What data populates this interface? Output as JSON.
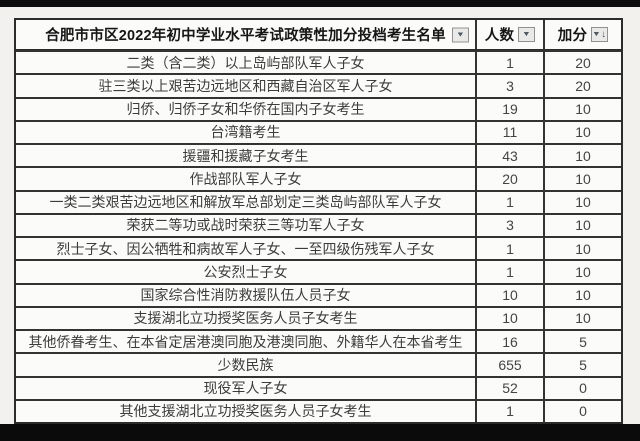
{
  "page": {
    "background_color": "#f2f1ee",
    "letterbox_color": "#0b0b0b"
  },
  "colors": {
    "table_border": "#2c2c2c",
    "header_text": "#161616",
    "cell_text": "#3c3c3c",
    "filter_button_bg": "#e9e9e8",
    "filter_button_border": "#919191",
    "filter_glyph": "#4c5a68"
  },
  "icons": {
    "dropdown_glyph": "▼",
    "sort_descending_glyph": "↓"
  },
  "table": {
    "title": "合肥市市区2022年初中学业水平考试政策性加分投档考生名单",
    "columns": {
      "count": "人数",
      "bonus": "加分"
    },
    "rows": [
      {
        "category": "二类（含二类）以上岛屿部队军人子女",
        "count": "1",
        "bonus": "20"
      },
      {
        "category": "驻三类以上艰苦边远地区和西藏自治区军人子女",
        "count": "3",
        "bonus": "20"
      },
      {
        "category": "归侨、归侨子女和华侨在国内子女考生",
        "count": "19",
        "bonus": "10"
      },
      {
        "category": "台湾籍考生",
        "count": "11",
        "bonus": "10"
      },
      {
        "category": "援疆和援藏子女考生",
        "count": "43",
        "bonus": "10"
      },
      {
        "category": "作战部队军人子女",
        "count": "20",
        "bonus": "10"
      },
      {
        "category": "一类二类艰苦边远地区和解放军总部划定三类岛屿部队军人子女",
        "count": "1",
        "bonus": "10"
      },
      {
        "category": "荣获二等功或战时荣获三等功军人子女",
        "count": "3",
        "bonus": "10"
      },
      {
        "category": "烈士子女、因公牺牲和病故军人子女、一至四级伤残军人子女",
        "count": "1",
        "bonus": "10"
      },
      {
        "category": "公安烈士子女",
        "count": "1",
        "bonus": "10"
      },
      {
        "category": "国家综合性消防救援队伍人员子女",
        "count": "10",
        "bonus": "10"
      },
      {
        "category": "支援湖北立功授奖医务人员子女考生",
        "count": "10",
        "bonus": "10"
      },
      {
        "category": "其他侨眷考生、在本省定居港澳同胞及港澳同胞、外籍华人在本省考生",
        "count": "16",
        "bonus": "5"
      },
      {
        "category": "少数民族",
        "count": "655",
        "bonus": "5"
      },
      {
        "category": "现役军人子女",
        "count": "52",
        "bonus": "0"
      },
      {
        "category": "其他支援湖北立功授奖医务人员子女考生",
        "count": "1",
        "bonus": "0"
      }
    ]
  }
}
